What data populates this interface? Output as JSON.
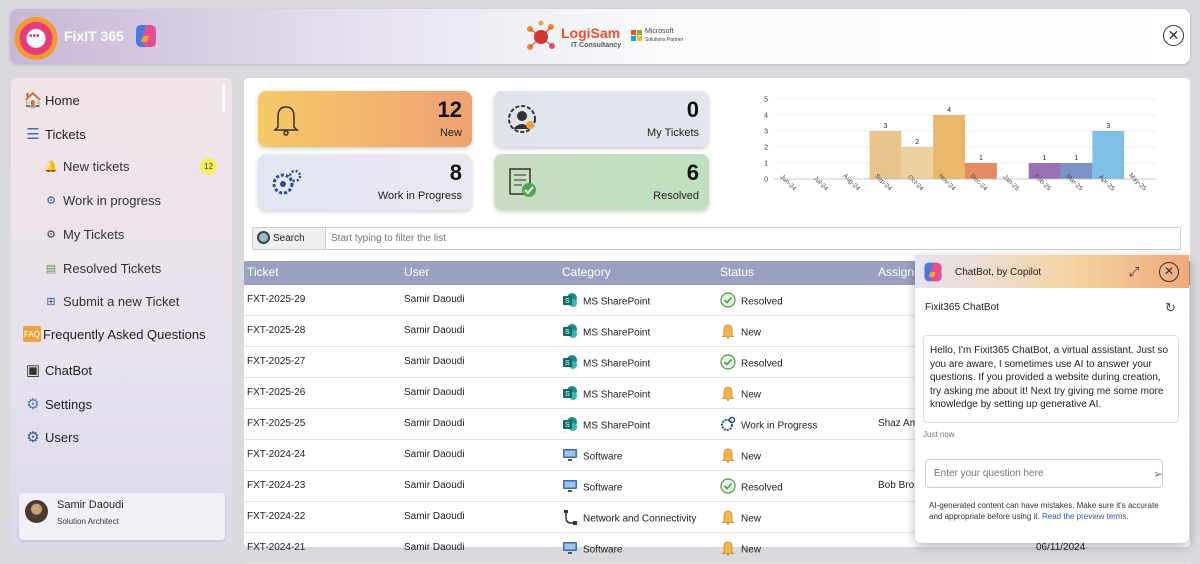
{
  "header": {
    "app_name": "FixIT 365",
    "brand_name": "LogiSam",
    "brand_sub": "IT Consultancy",
    "partner_line1": "Microsoft",
    "partner_line2": "Solutions Partner"
  },
  "sidebar": {
    "items": [
      {
        "label": "Home",
        "icon": "home-icon"
      },
      {
        "label": "Tickets",
        "icon": "tickets-icon"
      },
      {
        "label": "Frequently Asked Questions",
        "icon": "faq-icon"
      },
      {
        "label": "ChatBot",
        "icon": "chatbot-icon"
      },
      {
        "label": "Settings",
        "icon": "gear-icon"
      },
      {
        "label": "Users",
        "icon": "users-icon"
      }
    ],
    "subitems": [
      {
        "label": "New tickets",
        "icon": "bell-icon",
        "badge": "12"
      },
      {
        "label": "Work in progress",
        "icon": "gears-icon"
      },
      {
        "label": "My Tickets",
        "icon": "user-gear-icon"
      },
      {
        "label": "Resolved Tickets",
        "icon": "resolved-icon"
      },
      {
        "label": "Submit a new Ticket",
        "icon": "plus-icon"
      }
    ],
    "user": {
      "name": "Samir Daoudi",
      "role": "Solution Architect"
    }
  },
  "cards": {
    "new": {
      "value": "12",
      "label": "New"
    },
    "my": {
      "value": "0",
      "label": "My Tickets"
    },
    "wip": {
      "value": "8",
      "label": "Work in Progress"
    },
    "resolved": {
      "value": "6",
      "label": "Resolved"
    }
  },
  "chart_data": {
    "type": "bar",
    "categories": [
      "Jun-24",
      "Jul-24",
      "Aug-24",
      "Sep-24",
      "Oct-24",
      "Nov-24",
      "Dec-24",
      "Jan-25",
      "Feb-25",
      "Mar-25",
      "Apr-25",
      "May-25"
    ],
    "values": [
      0,
      0,
      0,
      3,
      2,
      4,
      1,
      0,
      1,
      1,
      3,
      0
    ],
    "colors": [
      "#cccccc",
      "#cccccc",
      "#cccccc",
      "#e8c48e",
      "#edd19e",
      "#e9b86a",
      "#e58b62",
      "#cccccc",
      "#9a70b4",
      "#7c93c9",
      "#7ec0e6",
      "#cccccc"
    ],
    "ylim": [
      0,
      5
    ],
    "yticks": [
      "0",
      "1",
      "2",
      "3",
      "4",
      "5"
    ],
    "title": "",
    "xlabel": "",
    "ylabel": ""
  },
  "search": {
    "button_label": "Search",
    "placeholder": "Start typing to filter the list"
  },
  "table": {
    "headers": [
      "Ticket",
      "User",
      "Category",
      "Status",
      "Assigne"
    ],
    "rows": [
      {
        "ticket": "FXT-2025-29",
        "user": "Samir Daoudi",
        "category": "MS SharePoint",
        "cat_icon": "sharepoint-icon",
        "status": "Resolved",
        "status_icon": "check-icon",
        "assignee": "",
        "date": ""
      },
      {
        "ticket": "FXT-2025-28",
        "user": "Samir Daoudi",
        "category": "MS SharePoint",
        "cat_icon": "sharepoint-icon",
        "status": "New",
        "status_icon": "bell-icon",
        "assignee": "",
        "date": ""
      },
      {
        "ticket": "FXT-2025-27",
        "user": "Samir Daoudi",
        "category": "MS SharePoint",
        "cat_icon": "sharepoint-icon",
        "status": "Resolved",
        "status_icon": "check-icon",
        "assignee": "",
        "date": ""
      },
      {
        "ticket": "FXT-2025-26",
        "user": "Samir Daoudi",
        "category": "MS SharePoint",
        "cat_icon": "sharepoint-icon",
        "status": "New",
        "status_icon": "bell-icon",
        "assignee": "",
        "date": ""
      },
      {
        "ticket": "FXT-2025-25",
        "user": "Samir Daoudi",
        "category": "MS SharePoint",
        "cat_icon": "sharepoint-icon",
        "status": "Work in Progress",
        "status_icon": "gears-icon",
        "assignee": "Shaz Am",
        "date": ""
      },
      {
        "ticket": "FXT-2024-24",
        "user": "Samir Daoudi",
        "category": "Software",
        "cat_icon": "monitor-icon",
        "status": "New",
        "status_icon": "bell-icon",
        "assignee": "",
        "date": ""
      },
      {
        "ticket": "FXT-2024-23",
        "user": "Samir Daoudi",
        "category": "Software",
        "cat_icon": "monitor-icon",
        "status": "Resolved",
        "status_icon": "check-icon",
        "assignee": "Bob Bro",
        "date": ""
      },
      {
        "ticket": "FXT-2024-22",
        "user": "Samir Daoudi",
        "category": "Network and Connectivity",
        "cat_icon": "cable-icon",
        "status": "New",
        "status_icon": "bell-icon",
        "assignee": "",
        "date": ""
      },
      {
        "ticket": "FXT-2024-21",
        "user": "Samir Daoudi",
        "category": "Software",
        "cat_icon": "monitor-icon",
        "status": "New",
        "status_icon": "bell-icon",
        "assignee": "",
        "date": "06/11/2024"
      }
    ]
  },
  "chatbot": {
    "title": "ChatBot, by Copilot",
    "subtitle": "Fixit365 ChatBot",
    "message": "Hello, I'm Fixit365 ChatBot, a virtual assistant. Just so you are aware, I sometimes use AI to answer your questions. If you provided a website during creation, try asking me about it! Next try giving me some more knowledge by setting up generative AI.",
    "timestamp": "Just now",
    "input_placeholder": "Enter your question here",
    "disclaimer": "AI-generated content can have mistakes. Make sure it's accurate and appropriate before using it.",
    "disclaimer_link": "Read the preview terms."
  }
}
